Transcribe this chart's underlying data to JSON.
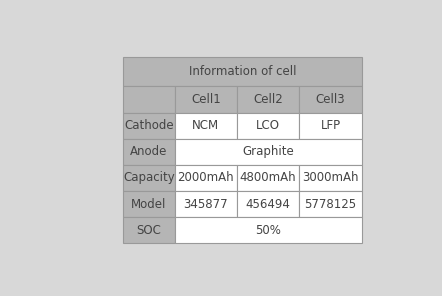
{
  "title": "Information of cell",
  "header_row": [
    "",
    "Cell1",
    "Cell2",
    "Cell3"
  ],
  "rows": [
    [
      "Cathode",
      "NCM",
      "LCO",
      "LFP"
    ],
    [
      "Anode",
      "Graphite",
      "",
      ""
    ],
    [
      "Capacity",
      "2000mAh",
      "4800mAh",
      "3000mAh"
    ],
    [
      "Model",
      "345877",
      "456494",
      "5778125"
    ],
    [
      "SOC",
      "50%",
      "",
      ""
    ]
  ],
  "merged_rows": [
    1,
    4
  ],
  "header_bg": "#b5b5b5",
  "label_col_bg": "#b5b5b5",
  "data_bg": "#ffffff",
  "title_bg": "#b5b5b5",
  "border_color": "#999999",
  "text_color": "#444444",
  "fig_bg": "#d8d8d8",
  "fontsize": 8.5
}
